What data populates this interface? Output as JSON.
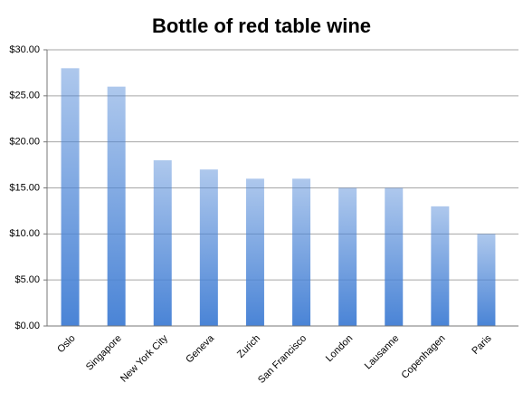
{
  "chart_data": {
    "type": "bar",
    "title": "Bottle of red table wine",
    "categories": [
      "Oslo",
      "Singapore",
      "New York City",
      "Geneva",
      "Zurich",
      "San Francisco",
      "London",
      "Lausanne",
      "Copenhagen",
      "Paris"
    ],
    "values": [
      28,
      26,
      18,
      17,
      16,
      16,
      15,
      15,
      13,
      10
    ],
    "color": "#4a84d6",
    "ylim": [
      0,
      30
    ],
    "yticks": [
      {
        "value": 0,
        "label": "$0.00"
      },
      {
        "value": 5,
        "label": "$5.00"
      },
      {
        "value": 10,
        "label": "$10.00"
      },
      {
        "value": 15,
        "label": "$15.00"
      },
      {
        "value": 20,
        "label": "$20.00"
      },
      {
        "value": 25,
        "label": "$25.00"
      },
      {
        "value": 30,
        "label": "$30.00"
      }
    ],
    "grid": true
  }
}
